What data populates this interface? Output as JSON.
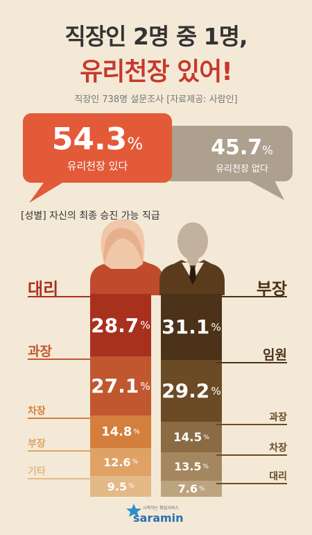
{
  "header": {
    "title_line1": "직장인 2명 중 1명,",
    "title_line2": "유리천장 있어!",
    "source": "직장인 738명 설문조사 [자료제공: 사람인]"
  },
  "summary": {
    "yes": {
      "value": "54.3",
      "unit": "%",
      "label": "유리천장 있다",
      "color": "#e35a39"
    },
    "no": {
      "value": "45.7",
      "unit": "%",
      "label": "유리천장 없다",
      "color": "#ada08e"
    }
  },
  "section_title": "[성별] 자신의 최종 승진 가능 직급",
  "logo": {
    "text": "saramin",
    "tagline": "시작하는 취업서비스"
  },
  "chart_data": [
    {
      "type": "bar",
      "title": "유리천장",
      "categories": [
        "유리천장 있다",
        "유리천장 없다"
      ],
      "values": [
        54.3,
        45.7
      ]
    },
    {
      "type": "bar",
      "stacked": true,
      "series": [
        {
          "name": "female",
          "categories": [
            "대리",
            "과장",
            "차장",
            "부장",
            "기타"
          ],
          "values": [
            28.7,
            27.1,
            14.8,
            12.6,
            9.5
          ],
          "colors": [
            "#a8311e",
            "#c1572f",
            "#d47f3d",
            "#dfa264",
            "#e3b987"
          ],
          "label_colors": [
            "#a8311e",
            "#c1572f",
            "#d47f3d",
            "#dfa264",
            "#e3b987"
          ]
        },
        {
          "name": "male",
          "categories": [
            "부장",
            "임원",
            "과장",
            "차장",
            "대리"
          ],
          "values": [
            31.1,
            29.2,
            14.5,
            13.5,
            7.6
          ],
          "colors": [
            "#4b3218",
            "#6b4a26",
            "#8b6b44",
            "#a5875f",
            "#bca47f"
          ],
          "label_colors": [
            "#4b3218",
            "#4b3218",
            "#6b4a26",
            "#6b4a26",
            "#6b4a26"
          ]
        }
      ]
    }
  ]
}
